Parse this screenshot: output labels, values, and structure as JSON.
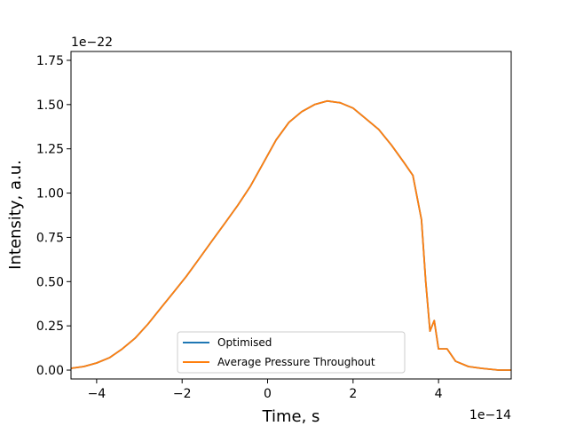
{
  "chart_data": {
    "type": "line",
    "title": "",
    "xlabel": "Time, s",
    "ylabel": "Intensity, a.u.",
    "x_offset_label": "1e−14",
    "y_offset_label": "1e−22",
    "x_scale": 1e-14,
    "y_scale": 1e-22,
    "xlim": [
      -4.6,
      5.7
    ],
    "ylim": [
      -0.05,
      1.8
    ],
    "xticks": [
      -4,
      -2,
      0,
      2,
      4
    ],
    "xtick_labels": [
      "−4",
      "−2",
      "0",
      "2",
      "4"
    ],
    "yticks": [
      0.0,
      0.25,
      0.5,
      0.75,
      1.0,
      1.25,
      1.5,
      1.75
    ],
    "ytick_labels": [
      "0.00",
      "0.25",
      "0.50",
      "0.75",
      "1.00",
      "1.25",
      "1.50",
      "1.75"
    ],
    "grid": false,
    "legend_position": "lower-center",
    "series": [
      {
        "name": "Optimised",
        "color": "#1f77b4",
        "x": [
          -4.6,
          -4.3,
          -4.0,
          -3.7,
          -3.4,
          -3.1,
          -2.8,
          -2.5,
          -2.2,
          -1.9,
          -1.6,
          -1.3,
          -1.0,
          -0.7,
          -0.4,
          -0.1,
          0.2,
          0.5,
          0.8,
          1.1,
          1.4,
          1.7,
          2.0,
          2.3,
          2.6,
          2.9,
          3.2,
          3.4,
          3.6,
          3.7,
          3.8,
          3.9,
          4.0,
          4.2,
          4.4,
          4.7,
          5.0,
          5.4,
          5.7
        ],
        "y": [
          0.01,
          0.02,
          0.04,
          0.07,
          0.12,
          0.18,
          0.26,
          0.35,
          0.44,
          0.53,
          0.63,
          0.73,
          0.83,
          0.93,
          1.04,
          1.17,
          1.3,
          1.4,
          1.46,
          1.5,
          1.52,
          1.51,
          1.48,
          1.42,
          1.36,
          1.27,
          1.17,
          1.1,
          0.85,
          0.5,
          0.22,
          0.28,
          0.12,
          0.12,
          0.05,
          0.02,
          0.01,
          0.0,
          0.0
        ]
      },
      {
        "name": "Average Pressure Throughout",
        "color": "#ff7f0e",
        "x": [
          -4.6,
          -4.3,
          -4.0,
          -3.7,
          -3.4,
          -3.1,
          -2.8,
          -2.5,
          -2.2,
          -1.9,
          -1.6,
          -1.3,
          -1.0,
          -0.7,
          -0.4,
          -0.1,
          0.2,
          0.5,
          0.8,
          1.1,
          1.4,
          1.7,
          2.0,
          2.3,
          2.6,
          2.9,
          3.2,
          3.4,
          3.6,
          3.7,
          3.8,
          3.9,
          4.0,
          4.2,
          4.4,
          4.7,
          5.0,
          5.4,
          5.7
        ],
        "y": [
          0.01,
          0.02,
          0.04,
          0.07,
          0.12,
          0.18,
          0.26,
          0.35,
          0.44,
          0.53,
          0.63,
          0.73,
          0.83,
          0.93,
          1.04,
          1.17,
          1.3,
          1.4,
          1.46,
          1.5,
          1.52,
          1.51,
          1.48,
          1.42,
          1.36,
          1.27,
          1.17,
          1.1,
          0.85,
          0.5,
          0.22,
          0.28,
          0.12,
          0.12,
          0.05,
          0.02,
          0.01,
          0.0,
          0.0
        ]
      }
    ]
  }
}
